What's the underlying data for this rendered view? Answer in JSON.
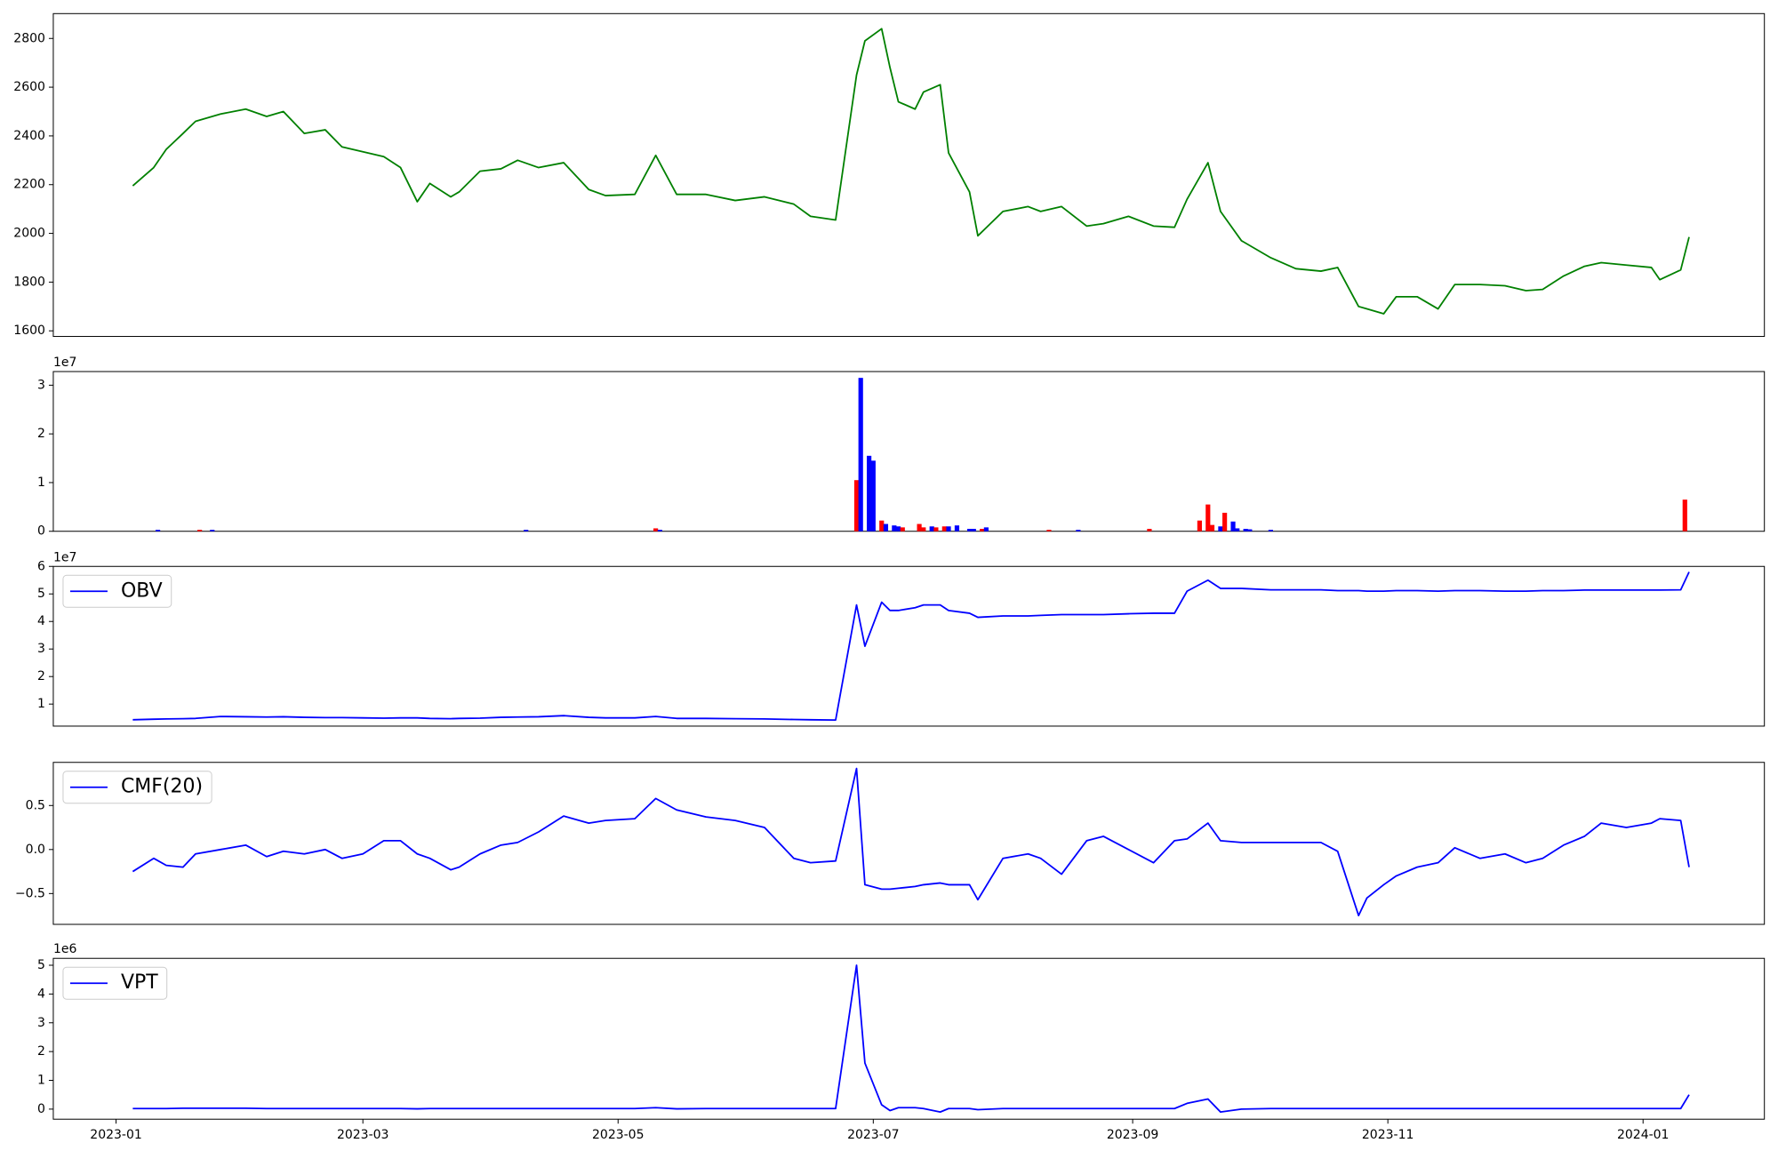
{
  "chart_data": [
    {
      "type": "line",
      "xlim": [
        "2022-12-17",
        "2024-01-30"
      ],
      "x": [
        "2023-01-05",
        "2023-01-10",
        "2023-01-13",
        "2023-01-17",
        "2023-01-20",
        "2023-01-26",
        "2023-02-01",
        "2023-02-06",
        "2023-02-10",
        "2023-02-15",
        "2023-02-20",
        "2023-02-24",
        "2023-03-01",
        "2023-03-06",
        "2023-03-10",
        "2023-03-14",
        "2023-03-17",
        "2023-03-22",
        "2023-03-24",
        "2023-03-29",
        "2023-04-03",
        "2023-04-07",
        "2023-04-12",
        "2023-04-18",
        "2023-04-24",
        "2023-04-28",
        "2023-05-05",
        "2023-05-10",
        "2023-05-15",
        "2023-05-22",
        "2023-05-29",
        "2023-06-05",
        "2023-06-12",
        "2023-06-16",
        "2023-06-22",
        "2023-06-27",
        "2023-06-29",
        "2023-07-03",
        "2023-07-05",
        "2023-07-07",
        "2023-07-11",
        "2023-07-13",
        "2023-07-17",
        "2023-07-19",
        "2023-07-24",
        "2023-07-26",
        "2023-08-01",
        "2023-08-07",
        "2023-08-10",
        "2023-08-15",
        "2023-08-21",
        "2023-08-25",
        "2023-08-31",
        "2023-09-06",
        "2023-09-11",
        "2023-09-14",
        "2023-09-19",
        "2023-09-22",
        "2023-09-27",
        "2023-10-04",
        "2023-10-10",
        "2023-10-16",
        "2023-10-20",
        "2023-10-25",
        "2023-10-27",
        "2023-10-31",
        "2023-11-03",
        "2023-11-08",
        "2023-11-13",
        "2023-11-17",
        "2023-11-23",
        "2023-11-29",
        "2023-12-04",
        "2023-12-08",
        "2023-12-13",
        "2023-12-18",
        "2023-12-22",
        "2023-12-28",
        "2024-01-03",
        "2024-01-05",
        "2024-01-10",
        "2024-01-12"
      ],
      "series": [
        {
          "color": "#008000",
          "values": [
            2195,
            2270,
            2345,
            2410,
            2460,
            2490,
            2510,
            2480,
            2500,
            2410,
            2425,
            2355,
            2335,
            2315,
            2270,
            2130,
            2205,
            2150,
            2170,
            2255,
            2265,
            2300,
            2270,
            2290,
            2180,
            2155,
            2160,
            2320,
            2160,
            2160,
            2135,
            2150,
            2120,
            2070,
            2055,
            2650,
            2790,
            2840,
            2680,
            2540,
            2510,
            2580,
            2610,
            2330,
            2170,
            1990,
            2090,
            2110,
            2090,
            2110,
            2030,
            2040,
            2070,
            2030,
            2025,
            2140,
            2290,
            2090,
            1970,
            1900,
            1855,
            1845,
            1860,
            1700,
            1690,
            1670,
            1740,
            1740,
            1690,
            1790,
            1790,
            1785,
            1765,
            1770,
            1825,
            1865,
            1880,
            1870,
            1860,
            1810,
            1850,
            1985
          ]
        }
      ],
      "ylim": [
        1577,
        2902
      ],
      "yticks": [
        1600,
        1800,
        2000,
        2200,
        2400,
        2600,
        2800
      ]
    },
    {
      "type": "bar",
      "xlim": [
        "2022-12-17",
        "2024-01-30"
      ],
      "offset_label": "1e7",
      "x": [
        "2023-01-11",
        "2023-01-21",
        "2023-01-24",
        "2023-04-09",
        "2023-05-10",
        "2023-05-11",
        "2023-06-27",
        "2023-06-28",
        "2023-06-30",
        "2023-07-01",
        "2023-07-03",
        "2023-07-04",
        "2023-07-06",
        "2023-07-07",
        "2023-07-08",
        "2023-07-12",
        "2023-07-13",
        "2023-07-15",
        "2023-07-16",
        "2023-07-18",
        "2023-07-19",
        "2023-07-21",
        "2023-07-24",
        "2023-07-25",
        "2023-07-27",
        "2023-07-28",
        "2023-08-12",
        "2023-08-19",
        "2023-09-05",
        "2023-09-17",
        "2023-09-19",
        "2023-09-20",
        "2023-09-22",
        "2023-09-23",
        "2023-09-25",
        "2023-09-26",
        "2023-09-28",
        "2023-09-29",
        "2023-10-04",
        "2024-01-11"
      ],
      "values": [
        0.03,
        0.03,
        0.03,
        0.03,
        0.06,
        0.03,
        1.05,
        3.15,
        1.55,
        1.45,
        0.22,
        0.15,
        0.12,
        0.1,
        0.08,
        0.15,
        0.08,
        0.1,
        0.08,
        0.1,
        0.1,
        0.12,
        0.05,
        0.05,
        0.05,
        0.08,
        0.03,
        0.03,
        0.05,
        0.22,
        0.55,
        0.13,
        0.1,
        0.38,
        0.2,
        0.06,
        0.05,
        0.04,
        0.03,
        0.65
      ],
      "colors": [
        "#0000ff",
        "#ff0000",
        "#0000ff",
        "#0000ff",
        "#ff0000",
        "#0000ff",
        "#ff0000",
        "#0000ff",
        "#0000ff",
        "#0000ff",
        "#ff0000",
        "#0000ff",
        "#0000ff",
        "#0000ff",
        "#ff0000",
        "#ff0000",
        "#ff0000",
        "#0000ff",
        "#ff0000",
        "#ff0000",
        "#0000ff",
        "#0000ff",
        "#0000ff",
        "#0000ff",
        "#ff0000",
        "#0000ff",
        "#ff0000",
        "#0000ff",
        "#ff0000",
        "#ff0000",
        "#ff0000",
        "#ff0000",
        "#0000ff",
        "#ff0000",
        "#0000ff",
        "#0000ff",
        "#0000ff",
        "#0000ff",
        "#0000ff",
        "#ff0000"
      ],
      "ylim": [
        0,
        3.28
      ],
      "yticks": [
        0,
        1,
        2,
        3
      ]
    },
    {
      "type": "line",
      "xlim": [
        "2022-12-17",
        "2024-01-30"
      ],
      "offset_label": "1e7",
      "legend": "upper left",
      "x": [
        "2023-01-05",
        "2023-01-10",
        "2023-01-13",
        "2023-01-17",
        "2023-01-20",
        "2023-01-26",
        "2023-02-01",
        "2023-02-06",
        "2023-02-10",
        "2023-02-15",
        "2023-02-20",
        "2023-02-24",
        "2023-03-01",
        "2023-03-06",
        "2023-03-10",
        "2023-03-14",
        "2023-03-17",
        "2023-03-22",
        "2023-03-24",
        "2023-03-29",
        "2023-04-03",
        "2023-04-07",
        "2023-04-12",
        "2023-04-18",
        "2023-04-24",
        "2023-04-28",
        "2023-05-05",
        "2023-05-10",
        "2023-05-15",
        "2023-05-22",
        "2023-05-29",
        "2023-06-05",
        "2023-06-12",
        "2023-06-16",
        "2023-06-22",
        "2023-06-27",
        "2023-06-29",
        "2023-07-03",
        "2023-07-05",
        "2023-07-07",
        "2023-07-11",
        "2023-07-13",
        "2023-07-17",
        "2023-07-19",
        "2023-07-24",
        "2023-07-26",
        "2023-08-01",
        "2023-08-07",
        "2023-08-10",
        "2023-08-15",
        "2023-08-21",
        "2023-08-25",
        "2023-08-31",
        "2023-09-06",
        "2023-09-11",
        "2023-09-14",
        "2023-09-19",
        "2023-09-22",
        "2023-09-27",
        "2023-10-04",
        "2023-10-10",
        "2023-10-16",
        "2023-10-20",
        "2023-10-25",
        "2023-10-27",
        "2023-10-31",
        "2023-11-03",
        "2023-11-08",
        "2023-11-13",
        "2023-11-17",
        "2023-11-23",
        "2023-11-29",
        "2023-12-04",
        "2023-12-08",
        "2023-12-13",
        "2023-12-18",
        "2023-12-22",
        "2023-12-28",
        "2024-01-03",
        "2024-01-05",
        "2024-01-10",
        "2024-01-12"
      ],
      "series": [
        {
          "name": "OBV",
          "color": "#0000ff",
          "values": [
            0.43,
            0.45,
            0.46,
            0.47,
            0.48,
            0.55,
            0.54,
            0.53,
            0.54,
            0.52,
            0.51,
            0.51,
            0.5,
            0.49,
            0.5,
            0.5,
            0.48,
            0.47,
            0.48,
            0.49,
            0.52,
            0.53,
            0.54,
            0.58,
            0.52,
            0.5,
            0.5,
            0.55,
            0.48,
            0.48,
            0.47,
            0.46,
            0.44,
            0.43,
            0.42,
            4.6,
            3.1,
            4.7,
            4.4,
            4.4,
            4.5,
            4.6,
            4.6,
            4.4,
            4.3,
            4.15,
            4.2,
            4.2,
            4.22,
            4.25,
            4.25,
            4.25,
            4.28,
            4.3,
            4.3,
            5.1,
            5.5,
            5.2,
            5.2,
            5.15,
            5.15,
            5.15,
            5.12,
            5.12,
            5.1,
            5.1,
            5.12,
            5.12,
            5.1,
            5.12,
            5.12,
            5.1,
            5.1,
            5.12,
            5.12,
            5.14,
            5.14,
            5.14,
            5.14,
            5.14,
            5.15,
            5.8
          ]
        }
      ],
      "ylim": [
        0.2,
        6.0
      ],
      "yticks": [
        1,
        2,
        3,
        4,
        5,
        6
      ]
    },
    {
      "type": "line",
      "xlim": [
        "2022-12-17",
        "2024-01-30"
      ],
      "legend": "upper left",
      "x": [
        "2023-01-05",
        "2023-01-10",
        "2023-01-13",
        "2023-01-17",
        "2023-01-20",
        "2023-01-26",
        "2023-02-01",
        "2023-02-06",
        "2023-02-10",
        "2023-02-15",
        "2023-02-20",
        "2023-02-24",
        "2023-03-01",
        "2023-03-06",
        "2023-03-10",
        "2023-03-14",
        "2023-03-17",
        "2023-03-22",
        "2023-03-24",
        "2023-03-29",
        "2023-04-03",
        "2023-04-07",
        "2023-04-12",
        "2023-04-18",
        "2023-04-24",
        "2023-04-28",
        "2023-05-05",
        "2023-05-10",
        "2023-05-15",
        "2023-05-22",
        "2023-05-29",
        "2023-06-05",
        "2023-06-12",
        "2023-06-16",
        "2023-06-22",
        "2023-06-27",
        "2023-06-29",
        "2023-07-03",
        "2023-07-05",
        "2023-07-07",
        "2023-07-11",
        "2023-07-13",
        "2023-07-17",
        "2023-07-19",
        "2023-07-24",
        "2023-07-26",
        "2023-08-01",
        "2023-08-07",
        "2023-08-10",
        "2023-08-15",
        "2023-08-21",
        "2023-08-25",
        "2023-08-31",
        "2023-09-06",
        "2023-09-11",
        "2023-09-14",
        "2023-09-19",
        "2023-09-22",
        "2023-09-27",
        "2023-10-04",
        "2023-10-10",
        "2023-10-16",
        "2023-10-20",
        "2023-10-25",
        "2023-10-27",
        "2023-10-31",
        "2023-11-03",
        "2023-11-08",
        "2023-11-13",
        "2023-11-17",
        "2023-11-23",
        "2023-11-29",
        "2023-12-04",
        "2023-12-08",
        "2023-12-13",
        "2023-12-18",
        "2023-12-22",
        "2023-12-28",
        "2024-01-03",
        "2024-01-05",
        "2024-01-10",
        "2024-01-12"
      ],
      "series": [
        {
          "name": "CMF(20)",
          "color": "#0000ff",
          "values": [
            -0.25,
            -0.1,
            -0.18,
            -0.2,
            -0.05,
            0.0,
            0.05,
            -0.08,
            -0.02,
            -0.05,
            0.0,
            -0.1,
            -0.05,
            0.1,
            0.1,
            -0.05,
            -0.1,
            -0.23,
            -0.2,
            -0.05,
            0.05,
            0.08,
            0.2,
            0.38,
            0.3,
            0.33,
            0.35,
            0.58,
            0.45,
            0.37,
            0.33,
            0.25,
            -0.1,
            -0.15,
            -0.13,
            0.92,
            -0.4,
            -0.45,
            -0.45,
            -0.44,
            -0.42,
            -0.4,
            -0.38,
            -0.4,
            -0.4,
            -0.57,
            -0.1,
            -0.05,
            -0.1,
            -0.28,
            0.1,
            0.15,
            0.0,
            -0.15,
            0.1,
            0.12,
            0.3,
            0.1,
            0.08,
            0.08,
            0.08,
            0.08,
            -0.02,
            -0.75,
            -0.55,
            -0.4,
            -0.3,
            -0.2,
            -0.15,
            0.02,
            -0.1,
            -0.05,
            -0.15,
            -0.1,
            0.05,
            0.15,
            0.3,
            0.25,
            0.3,
            0.35,
            0.33,
            -0.2
          ]
        }
      ],
      "ylim": [
        -0.85,
        0.99
      ],
      "yticks": [
        {
          "value": -0.5,
          "label": "−0.5"
        },
        {
          "value": 0,
          "label": "0.0"
        },
        0.5
      ]
    },
    {
      "type": "line",
      "xlim": [
        "2022-12-17",
        "2024-01-30"
      ],
      "offset_label": "1e6",
      "legend": "upper left",
      "x": [
        "2023-01-05",
        "2023-01-10",
        "2023-01-13",
        "2023-01-17",
        "2023-01-20",
        "2023-01-26",
        "2023-02-01",
        "2023-02-06",
        "2023-02-10",
        "2023-02-15",
        "2023-02-20",
        "2023-02-24",
        "2023-03-01",
        "2023-03-06",
        "2023-03-10",
        "2023-03-14",
        "2023-03-17",
        "2023-03-22",
        "2023-03-24",
        "2023-03-29",
        "2023-04-03",
        "2023-04-07",
        "2023-04-12",
        "2023-04-18",
        "2023-04-24",
        "2023-04-28",
        "2023-05-05",
        "2023-05-10",
        "2023-05-15",
        "2023-05-22",
        "2023-05-29",
        "2023-06-05",
        "2023-06-12",
        "2023-06-16",
        "2023-06-22",
        "2023-06-27",
        "2023-06-29",
        "2023-07-03",
        "2023-07-05",
        "2023-07-07",
        "2023-07-11",
        "2023-07-13",
        "2023-07-17",
        "2023-07-19",
        "2023-07-24",
        "2023-07-26",
        "2023-08-01",
        "2023-08-07",
        "2023-08-10",
        "2023-08-15",
        "2023-08-21",
        "2023-08-25",
        "2023-08-31",
        "2023-09-06",
        "2023-09-11",
        "2023-09-14",
        "2023-09-19",
        "2023-09-22",
        "2023-09-27",
        "2023-10-04",
        "2023-10-10",
        "2023-10-16",
        "2023-10-20",
        "2023-10-25",
        "2023-10-27",
        "2023-10-31",
        "2023-11-03",
        "2023-11-08",
        "2023-11-13",
        "2023-11-17",
        "2023-11-23",
        "2023-11-29",
        "2023-12-04",
        "2023-12-08",
        "2023-12-13",
        "2023-12-18",
        "2023-12-22",
        "2023-12-28",
        "2024-01-03",
        "2024-01-05",
        "2024-01-10",
        "2024-01-12"
      ],
      "series": [
        {
          "name": "VPT",
          "color": "#0000ff",
          "values": [
            0.02,
            0.02,
            0.02,
            0.03,
            0.03,
            0.03,
            0.03,
            0.02,
            0.02,
            0.02,
            0.02,
            0.02,
            0.02,
            0.02,
            0.02,
            0.01,
            0.02,
            0.02,
            0.02,
            0.02,
            0.02,
            0.02,
            0.02,
            0.02,
            0.02,
            0.02,
            0.02,
            0.05,
            0.01,
            0.02,
            0.02,
            0.02,
            0.02,
            0.02,
            0.02,
            5.0,
            1.6,
            0.15,
            -0.05,
            0.05,
            0.05,
            0.02,
            -0.1,
            0.02,
            0.02,
            -0.02,
            0.02,
            0.02,
            0.02,
            0.02,
            0.02,
            0.02,
            0.02,
            0.02,
            0.02,
            0.2,
            0.35,
            -0.1,
            0.0,
            0.02,
            0.02,
            0.02,
            0.02,
            0.02,
            0.02,
            0.02,
            0.02,
            0.02,
            0.02,
            0.02,
            0.02,
            0.02,
            0.02,
            0.02,
            0.02,
            0.02,
            0.02,
            0.02,
            0.02,
            0.02,
            0.02,
            0.5
          ]
        }
      ],
      "ylim": [
        -0.35,
        5.24
      ],
      "yticks": [
        0,
        1,
        2,
        3,
        4,
        5
      ],
      "xticks": [
        {
          "value": "2023-01-01",
          "label": "2023-01"
        },
        {
          "value": "2023-03-01",
          "label": "2023-03"
        },
        {
          "value": "2023-05-01",
          "label": "2023-05"
        },
        {
          "value": "2023-07-01",
          "label": "2023-07"
        },
        {
          "value": "2023-09-01",
          "label": "2023-09"
        },
        {
          "value": "2023-11-01",
          "label": "2023-11"
        },
        {
          "value": "2024-01-01",
          "label": "2024-01"
        }
      ]
    }
  ]
}
